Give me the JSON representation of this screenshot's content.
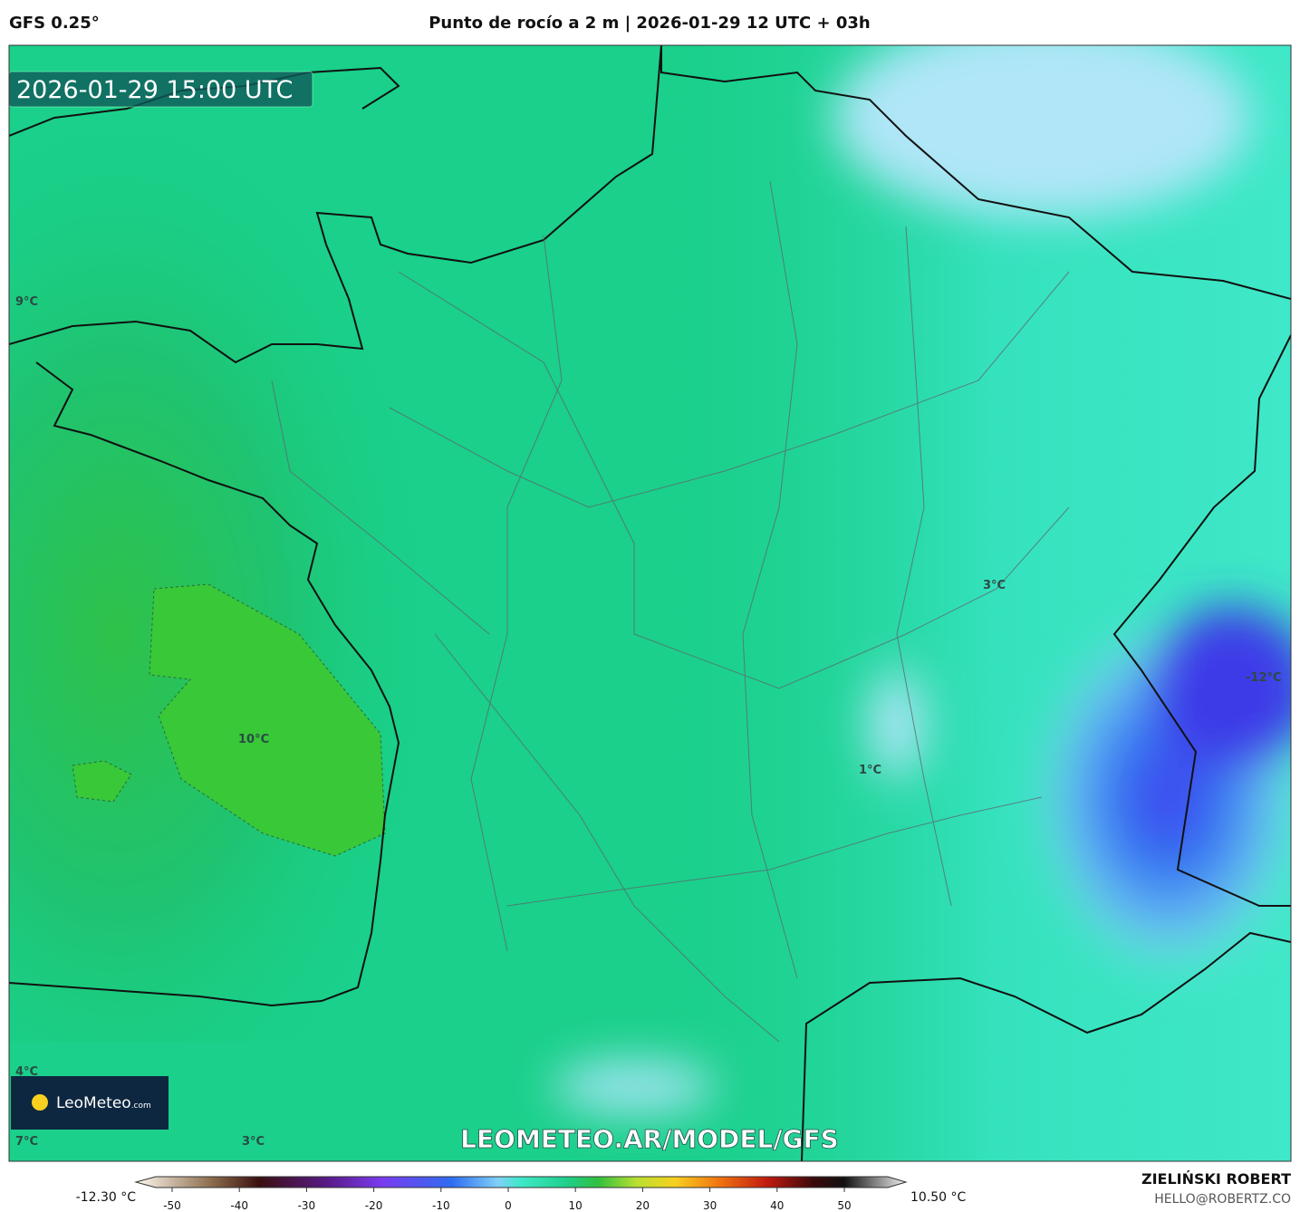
{
  "header": {
    "model": "GFS 0.25°",
    "title": "Punto de rocío a 2 m | 2026-01-29 12 UTC + 03h"
  },
  "map": {
    "timestamp": "2026-01-29 15:00 UTC",
    "contour_labels": [
      "9°C",
      "10°C",
      "3°C",
      "1°C",
      "-12°C",
      "4°C",
      "7°C",
      "3°C"
    ],
    "watermark": "LEOMETEO.AR/MODEL/GFS",
    "logo": {
      "name": "LeoMeteo",
      "suffix": ".com"
    }
  },
  "colorbar": {
    "min_label": "-12.30 °C",
    "max_label": "10.50 °C",
    "ticks": [
      -50,
      -40,
      -30,
      -20,
      -10,
      0,
      10,
      20,
      30,
      40,
      50
    ]
  },
  "credit": {
    "author": "ZIELIŃSKI ROBERT",
    "email": "HELLO@ROBERTZ.CO"
  }
}
